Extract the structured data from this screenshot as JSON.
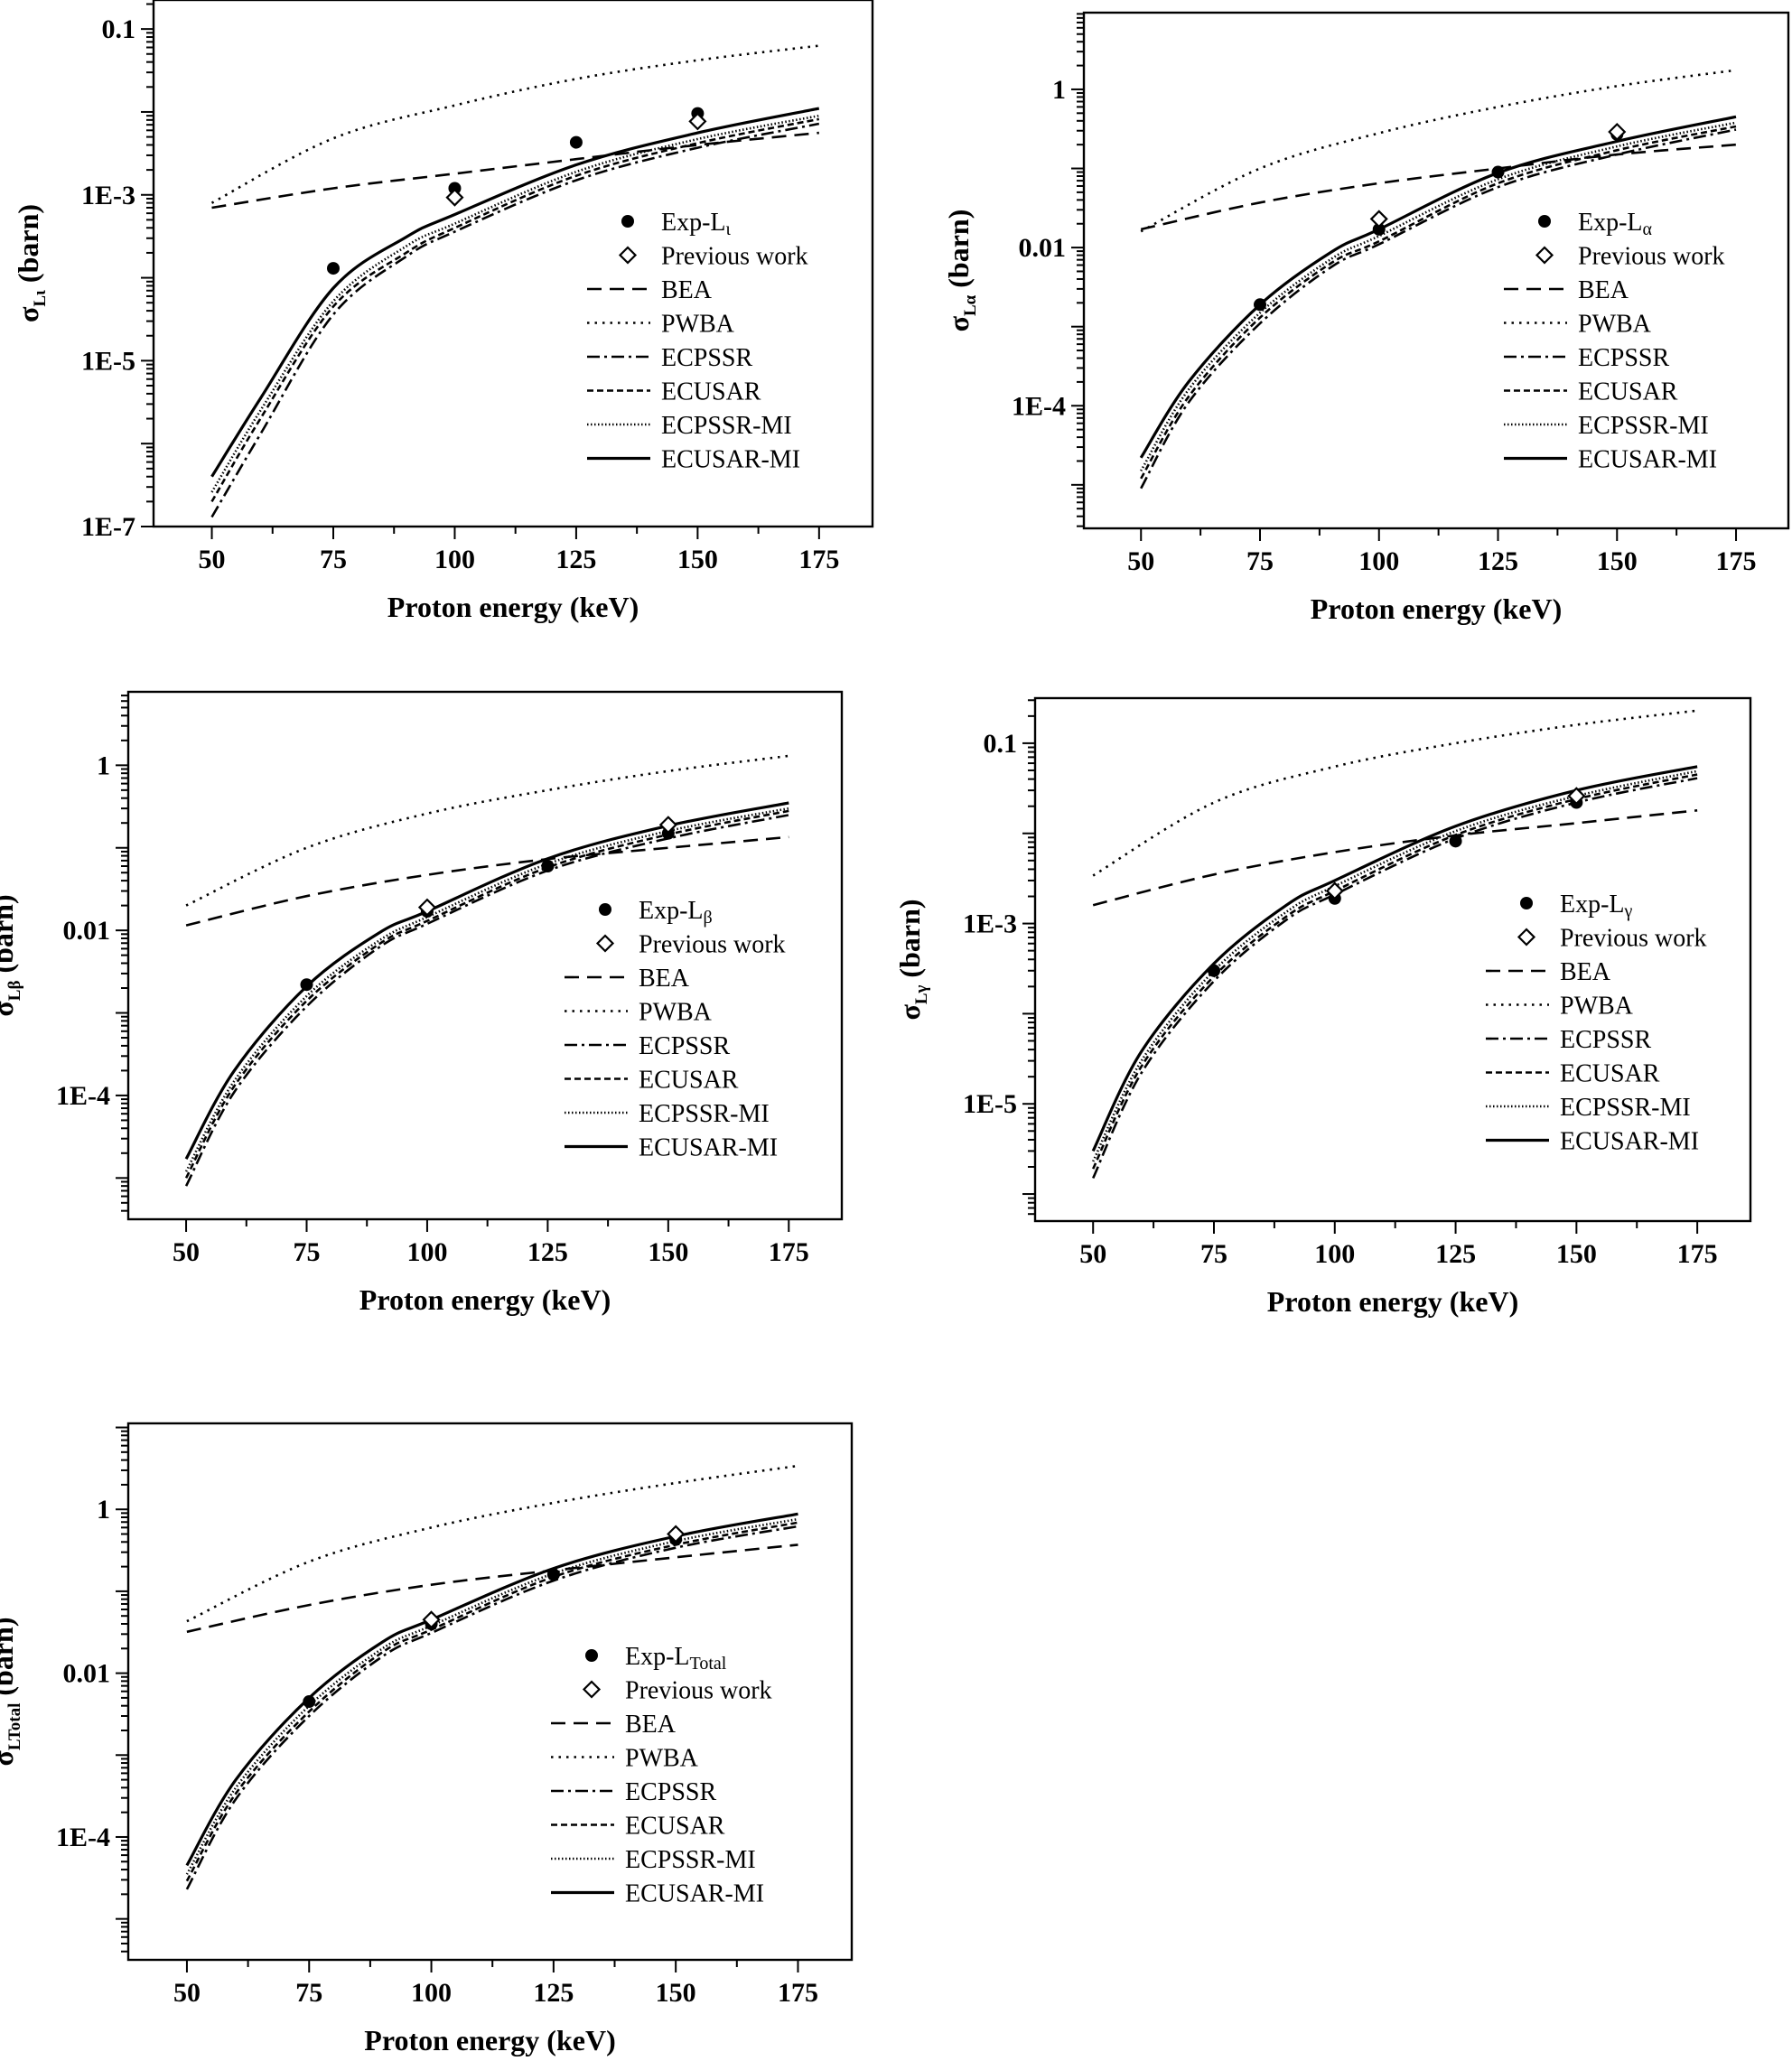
{
  "figure": {
    "background": "#ffffff",
    "ink": "#000000"
  },
  "chart_data": [
    {
      "type": "line",
      "xlabel": "Proton energy (keV)",
      "ylabel": "σ_Lι (barn)",
      "ylabel_main": "σ",
      "ylabel_sub": "Lι",
      "ylabel_unit": "(barn)",
      "yscale": "log",
      "xlim": [
        38,
        186
      ],
      "ylim_log10": [
        -7,
        -0.65
      ],
      "x_ticks": [
        50,
        75,
        100,
        125,
        150,
        175
      ],
      "x_tick_labels": [
        "50",
        "75",
        "100",
        "125",
        "150",
        "175"
      ],
      "y_ticks_log10": [
        -7,
        -5,
        -3,
        -1
      ],
      "y_tick_labels": [
        "1E-7",
        "1E-5",
        "1E-3",
        "0.1"
      ],
      "legend_position": "right",
      "series": [
        {
          "name": "BEA",
          "style": "dashed",
          "x": [
            50,
            75,
            100,
            125,
            150,
            175
          ],
          "y": [
            0.0007,
            0.0012,
            0.0018,
            0.0027,
            0.004,
            0.0056
          ]
        },
        {
          "name": "PWBA",
          "style": "dotted",
          "x": [
            50,
            75,
            100,
            125,
            150,
            175
          ],
          "y": [
            0.0008,
            0.0048,
            0.012,
            0.025,
            0.042,
            0.063
          ]
        },
        {
          "name": "ECPSSR",
          "style": "dashdot",
          "x": [
            50,
            60,
            75,
            90,
            100,
            125,
            150,
            175
          ],
          "y": [
            1.3e-07,
            1.3e-06,
            3.6e-05,
            0.00018,
            0.00036,
            0.0015,
            0.0037,
            0.0072
          ]
        },
        {
          "name": "ECUSAR",
          "style": "shortdash",
          "x": [
            50,
            60,
            75,
            90,
            100,
            125,
            150,
            175
          ],
          "y": [
            2e-07,
            2e-06,
            4.5e-05,
            0.0002,
            0.0004,
            0.0017,
            0.0042,
            0.0082
          ]
        },
        {
          "name": "ECPSSR-MI",
          "style": "densedot",
          "x": [
            50,
            60,
            75,
            90,
            100,
            125,
            150,
            175
          ],
          "y": [
            2.6e-07,
            2.5e-06,
            5.2e-05,
            0.00024,
            0.00045,
            0.0019,
            0.0047,
            0.009
          ]
        },
        {
          "name": "ECUSAR-MI",
          "style": "solid",
          "x": [
            50,
            60,
            75,
            90,
            100,
            125,
            150,
            175
          ],
          "y": [
            4e-07,
            3.5e-06,
            7.5e-05,
            0.00031,
            0.00058,
            0.0023,
            0.0056,
            0.011
          ]
        }
      ],
      "points": [
        {
          "name": "Exp-Lι",
          "legend_main": "Exp-L",
          "legend_sub": "ι",
          "marker": "filled-circle",
          "x": [
            75,
            100,
            125,
            150
          ],
          "y": [
            0.00013,
            0.0012,
            0.0043,
            0.0096
          ]
        },
        {
          "name": "Previous work",
          "legend_main": "Previous work",
          "legend_sub": "",
          "marker": "open-diamond",
          "x": [
            100,
            150
          ],
          "y": [
            0.00093,
            0.0077
          ]
        }
      ]
    },
    {
      "type": "line",
      "xlabel": "Proton energy (keV)",
      "ylabel": "σ_Lα (barn)",
      "ylabel_main": "σ",
      "ylabel_sub": "Lα",
      "ylabel_unit": "(barn)",
      "yscale": "log",
      "xlim": [
        38,
        186
      ],
      "ylim_log10": [
        -5.55,
        0.97
      ],
      "x_ticks": [
        50,
        75,
        100,
        125,
        150,
        175
      ],
      "x_tick_labels": [
        "50",
        "75",
        "100",
        "125",
        "150",
        "175"
      ],
      "y_ticks_log10": [
        -4,
        -2,
        0
      ],
      "y_tick_labels": [
        "1E-4",
        "0.01",
        "1"
      ],
      "legend_position": "right",
      "series": [
        {
          "name": "BEA",
          "style": "dashed",
          "x": [
            50,
            75,
            100,
            125,
            150,
            175
          ],
          "y": [
            0.017,
            0.037,
            0.065,
            0.1,
            0.15,
            0.2
          ]
        },
        {
          "name": "PWBA",
          "style": "dotted",
          "x": [
            50,
            75,
            100,
            125,
            150,
            175
          ],
          "y": [
            0.016,
            0.1,
            0.28,
            0.6,
            1.1,
            1.75
          ]
        },
        {
          "name": "ECPSSR",
          "style": "dashdot",
          "x": [
            50,
            60,
            75,
            90,
            100,
            125,
            150,
            175
          ],
          "y": [
            9e-06,
            0.00011,
            0.0011,
            0.0057,
            0.011,
            0.058,
            0.15,
            0.31
          ]
        },
        {
          "name": "ECUSAR",
          "style": "shortdash",
          "x": [
            50,
            60,
            75,
            90,
            100,
            125,
            150,
            175
          ],
          "y": [
            1.2e-05,
            0.00013,
            0.0013,
            0.0064,
            0.012,
            0.065,
            0.17,
            0.34
          ]
        },
        {
          "name": "ECPSSR-MI",
          "style": "densedot",
          "x": [
            50,
            60,
            75,
            90,
            100,
            125,
            150,
            175
          ],
          "y": [
            1.5e-05,
            0.00016,
            0.0015,
            0.0072,
            0.014,
            0.073,
            0.19,
            0.38
          ]
        },
        {
          "name": "ECUSAR-MI",
          "style": "solid",
          "x": [
            50,
            60,
            75,
            90,
            100,
            125,
            150,
            175
          ],
          "y": [
            2.2e-05,
            0.0002,
            0.0019,
            0.0088,
            0.017,
            0.088,
            0.22,
            0.45
          ]
        }
      ],
      "points": [
        {
          "name": "Exp-Lα",
          "legend_main": "Exp-L",
          "legend_sub": "α",
          "marker": "filled-circle",
          "x": [
            75,
            100,
            125,
            150
          ],
          "y": [
            0.0019,
            0.017,
            0.09,
            0.27
          ]
        },
        {
          "name": "Previous work",
          "legend_main": "Previous work",
          "legend_sub": "",
          "marker": "open-diamond",
          "x": [
            100,
            150
          ],
          "y": [
            0.023,
            0.29
          ]
        }
      ]
    },
    {
      "type": "line",
      "xlabel": "Proton energy (keV)",
      "ylabel": "σ_Lβ (barn)",
      "ylabel_main": "σ",
      "ylabel_sub": "Lβ",
      "ylabel_unit": "(barn)",
      "yscale": "log",
      "xlim": [
        38,
        186
      ],
      "ylim_log10": [
        -5.5,
        0.89
      ],
      "x_ticks": [
        50,
        75,
        100,
        125,
        150,
        175
      ],
      "x_tick_labels": [
        "50",
        "75",
        "100",
        "125",
        "150",
        "175"
      ],
      "y_ticks_log10": [
        -4,
        -2,
        0
      ],
      "y_tick_labels": [
        "1E-4",
        "0.01",
        "1"
      ],
      "legend_position": "right",
      "series": [
        {
          "name": "BEA",
          "style": "dashed",
          "x": [
            50,
            75,
            100,
            125,
            150,
            175
          ],
          "y": [
            0.0115,
            0.026,
            0.047,
            0.073,
            0.1,
            0.135
          ]
        },
        {
          "name": "PWBA",
          "style": "dotted",
          "x": [
            50,
            75,
            100,
            125,
            150,
            175
          ],
          "y": [
            0.02,
            0.1,
            0.26,
            0.5,
            0.85,
            1.3
          ]
        },
        {
          "name": "ECPSSR",
          "style": "dashdot",
          "x": [
            50,
            60,
            75,
            90,
            100,
            125,
            150,
            175
          ],
          "y": [
            8e-06,
            0.00011,
            0.0012,
            0.0062,
            0.012,
            0.053,
            0.13,
            0.25
          ]
        },
        {
          "name": "ECUSAR",
          "style": "shortdash",
          "x": [
            50,
            60,
            75,
            90,
            100,
            125,
            150,
            175
          ],
          "y": [
            1e-05,
            0.00013,
            0.0014,
            0.0068,
            0.013,
            0.058,
            0.145,
            0.28
          ]
        },
        {
          "name": "ECPSSR-MI",
          "style": "densedot",
          "x": [
            50,
            60,
            75,
            90,
            100,
            125,
            150,
            175
          ],
          "y": [
            1.2e-05,
            0.00015,
            0.0016,
            0.0075,
            0.0145,
            0.064,
            0.16,
            0.3
          ]
        },
        {
          "name": "ECUSAR-MI",
          "style": "solid",
          "x": [
            50,
            60,
            75,
            90,
            100,
            125,
            150,
            175
          ],
          "y": [
            1.7e-05,
            0.0002,
            0.0021,
            0.0093,
            0.017,
            0.074,
            0.185,
            0.35
          ]
        }
      ],
      "points": [
        {
          "name": "Exp-Lβ",
          "legend_main": "Exp-L",
          "legend_sub": "β",
          "marker": "filled-circle",
          "x": [
            75,
            100,
            125,
            150
          ],
          "y": [
            0.0022,
            0.017,
            0.06,
            0.15
          ]
        },
        {
          "name": "Previous work",
          "legend_main": "Previous work",
          "legend_sub": "",
          "marker": "open-diamond",
          "x": [
            100,
            150
          ],
          "y": [
            0.019,
            0.19
          ]
        }
      ]
    },
    {
      "type": "line",
      "xlabel": "Proton energy (keV)",
      "ylabel": "σ_Lγ (barn)",
      "ylabel_main": "σ",
      "ylabel_sub": "Lγ",
      "ylabel_unit": "(barn)",
      "yscale": "log",
      "xlim": [
        38,
        186
      ],
      "ylim_log10": [
        -6.3,
        -0.5
      ],
      "x_ticks": [
        50,
        75,
        100,
        125,
        150,
        175
      ],
      "x_tick_labels": [
        "50",
        "75",
        "100",
        "125",
        "150",
        "175"
      ],
      "y_ticks_log10": [
        -5,
        -3,
        -1
      ],
      "y_tick_labels": [
        "1E-5",
        "1E-3",
        "0.1"
      ],
      "legend_position": "right",
      "series": [
        {
          "name": "BEA",
          "style": "dashed",
          "x": [
            50,
            75,
            100,
            125,
            150,
            175
          ],
          "y": [
            0.0016,
            0.0035,
            0.0062,
            0.0095,
            0.013,
            0.018
          ]
        },
        {
          "name": "PWBA",
          "style": "dotted",
          "x": [
            50,
            75,
            100,
            125,
            150,
            175
          ],
          "y": [
            0.0034,
            0.022,
            0.055,
            0.1,
            0.16,
            0.23
          ]
        },
        {
          "name": "ECPSSR",
          "style": "dashdot",
          "x": [
            50,
            60,
            75,
            90,
            100,
            125,
            150,
            175
          ],
          "y": [
            1.5e-06,
            2.2e-05,
            0.00023,
            0.0011,
            0.0021,
            0.0088,
            0.022,
            0.041
          ]
        },
        {
          "name": "ECUSAR",
          "style": "shortdash",
          "x": [
            50,
            60,
            75,
            90,
            100,
            125,
            150,
            175
          ],
          "y": [
            1.9e-06,
            2.6e-05,
            0.00026,
            0.0012,
            0.0023,
            0.0096,
            0.024,
            0.045
          ]
        },
        {
          "name": "ECPSSR-MI",
          "style": "densedot",
          "x": [
            50,
            60,
            75,
            90,
            100,
            125,
            150,
            175
          ],
          "y": [
            2.3e-06,
            3e-05,
            0.0003,
            0.00135,
            0.0026,
            0.0106,
            0.026,
            0.049
          ]
        },
        {
          "name": "ECUSAR-MI",
          "style": "solid",
          "x": [
            50,
            60,
            75,
            90,
            100,
            125,
            150,
            175
          ],
          "y": [
            3e-06,
            3.8e-05,
            0.00036,
            0.0016,
            0.003,
            0.012,
            0.03,
            0.055
          ]
        }
      ],
      "points": [
        {
          "name": "Exp-Lγ",
          "legend_main": "Exp-L",
          "legend_sub": "γ",
          "marker": "filled-circle",
          "x": [
            75,
            100,
            125,
            150
          ],
          "y": [
            0.0003,
            0.0019,
            0.0082,
            0.022
          ]
        },
        {
          "name": "Previous work",
          "legend_main": "Previous work",
          "legend_sub": "",
          "marker": "open-diamond",
          "x": [
            100,
            150
          ],
          "y": [
            0.0023,
            0.026
          ]
        }
      ]
    },
    {
      "type": "line",
      "xlabel": "Proton energy (keV)",
      "ylabel": "σ_LTotal (barn)",
      "ylabel_main": "σ",
      "ylabel_sub": "LTotal",
      "ylabel_unit": "(barn)",
      "yscale": "log",
      "xlim": [
        38,
        186
      ],
      "ylim_log10": [
        -5.5,
        1.05
      ],
      "x_ticks": [
        50,
        75,
        100,
        125,
        150,
        175
      ],
      "x_tick_labels": [
        "50",
        "75",
        "100",
        "125",
        "150",
        "175"
      ],
      "y_ticks_log10": [
        -4,
        -2,
        0
      ],
      "y_tick_labels": [
        "1E-4",
        "0.01",
        "1"
      ],
      "legend_position": "right",
      "series": [
        {
          "name": "BEA",
          "style": "dashed",
          "x": [
            50,
            75,
            100,
            125,
            150,
            175
          ],
          "y": [
            0.032,
            0.068,
            0.12,
            0.18,
            0.26,
            0.37
          ]
        },
        {
          "name": "PWBA",
          "style": "dotted",
          "x": [
            50,
            75,
            100,
            125,
            150,
            175
          ],
          "y": [
            0.043,
            0.23,
            0.6,
            1.2,
            2.1,
            3.4
          ]
        },
        {
          "name": "ECPSSR",
          "style": "dashdot",
          "x": [
            50,
            60,
            75,
            90,
            100,
            125,
            150,
            175
          ],
          "y": [
            2.3e-05,
            0.00029,
            0.003,
            0.016,
            0.031,
            0.135,
            0.34,
            0.62
          ]
        },
        {
          "name": "ECUSAR",
          "style": "shortdash",
          "x": [
            50,
            60,
            75,
            90,
            100,
            125,
            150,
            175
          ],
          "y": [
            2.9e-05,
            0.00034,
            0.0034,
            0.018,
            0.034,
            0.15,
            0.37,
            0.69
          ]
        },
        {
          "name": "ECPSSR-MI",
          "style": "densedot",
          "x": [
            50,
            60,
            75,
            90,
            100,
            125,
            150,
            175
          ],
          "y": [
            3.5e-05,
            0.0004,
            0.004,
            0.02,
            0.038,
            0.165,
            0.41,
            0.76
          ]
        },
        {
          "name": "ECUSAR-MI",
          "style": "solid",
          "x": [
            50,
            60,
            75,
            90,
            100,
            125,
            150,
            175
          ],
          "y": [
            4.5e-05,
            0.0005,
            0.005,
            0.024,
            0.045,
            0.19,
            0.47,
            0.88
          ]
        }
      ],
      "points": [
        {
          "name": "Exp-LTotal",
          "legend_main": "Exp-L",
          "legend_sub": "Total",
          "marker": "filled-circle",
          "x": [
            75,
            100,
            125,
            150
          ],
          "y": [
            0.0045,
            0.04,
            0.16,
            0.43
          ]
        },
        {
          "name": "Previous work",
          "legend_main": "Previous work",
          "legend_sub": "",
          "marker": "open-diamond",
          "x": [
            100,
            150
          ],
          "y": [
            0.045,
            0.5
          ]
        }
      ]
    }
  ]
}
